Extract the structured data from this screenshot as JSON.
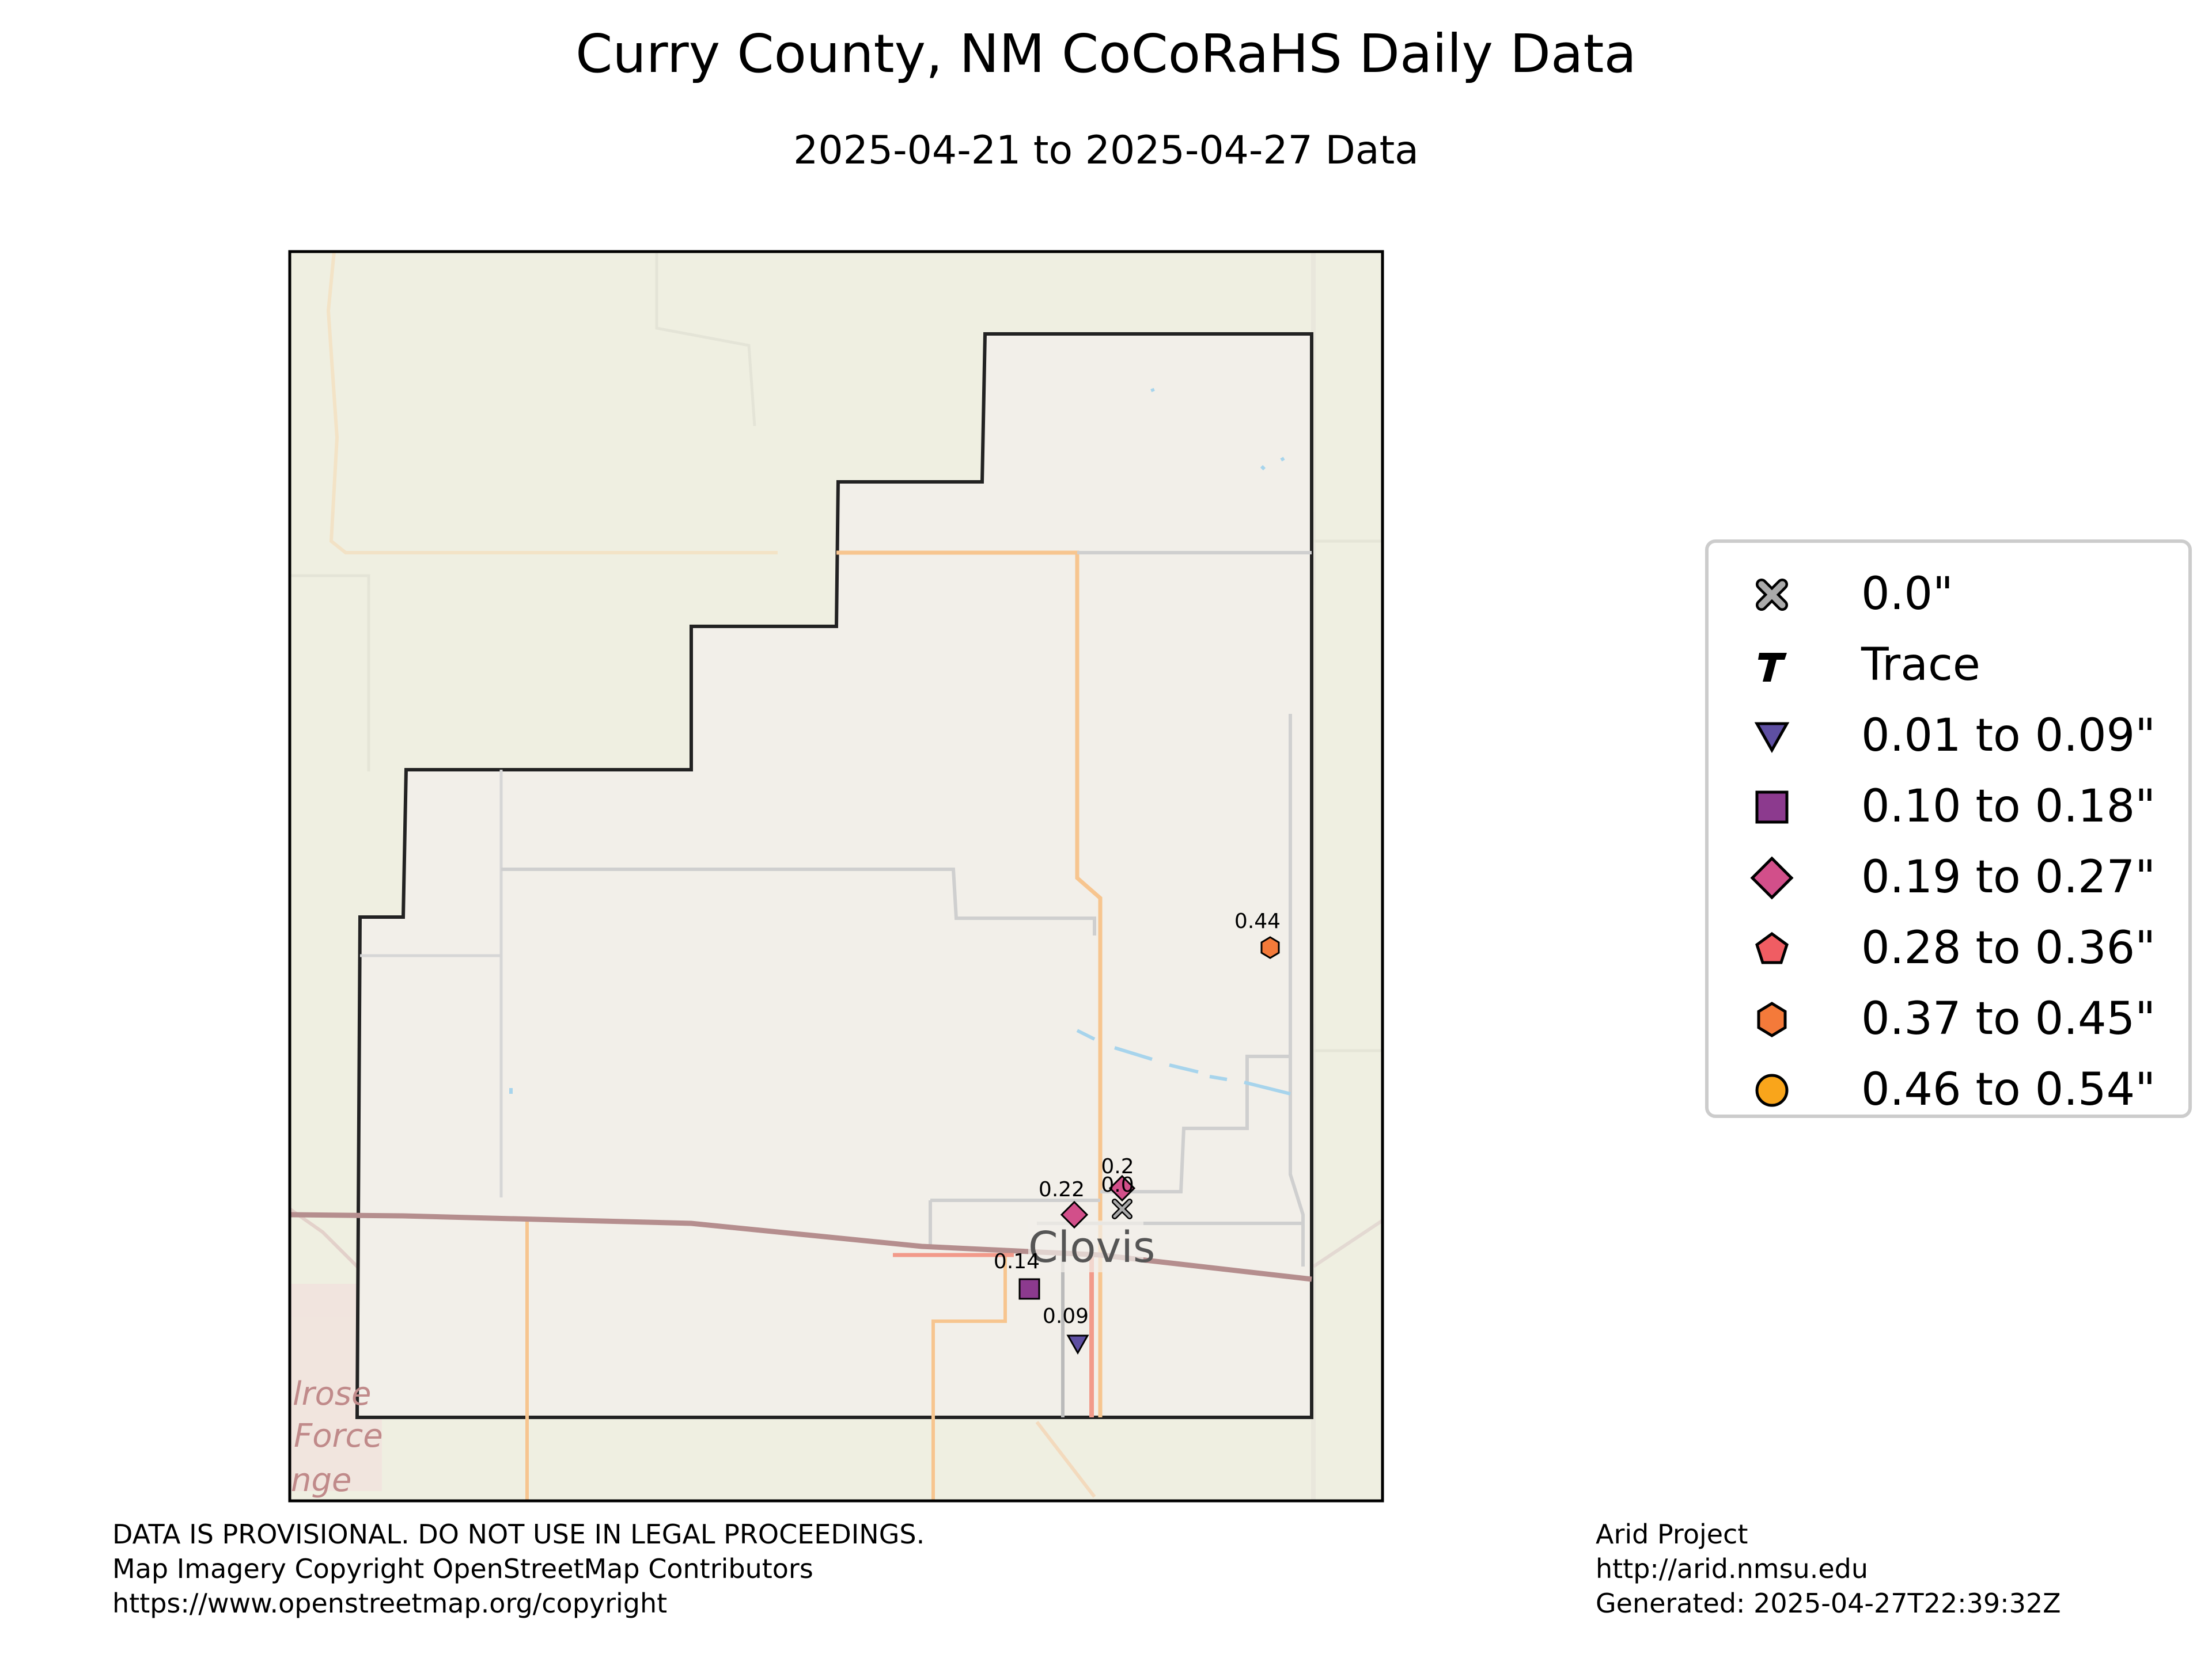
{
  "title": "Curry County, NM CoCoRaHS Daily Data",
  "subtitle": "2025-04-21 to 2025-04-27 Data",
  "colors": {
    "land": "#efefe1",
    "county_fill": "#f2efe9",
    "boundary": "#222222",
    "road_major": "#f7c58f",
    "road_minor": "#cccccc",
    "railway": "#a98c8c",
    "water": "#a7d4ec"
  },
  "map": {
    "place_label": "Clovis",
    "faint_labels": [
      "lrose",
      "Force",
      "nge"
    ]
  },
  "legend": {
    "items": [
      {
        "label": "0.0\"",
        "shape": "x-icon",
        "color": "#aaaaaa"
      },
      {
        "label": "Trace",
        "shape": "t-icon",
        "color": "#000000"
      },
      {
        "label": "0.01 to 0.09\"",
        "shape": "triangle-down-icon",
        "color": "#5e4fa2"
      },
      {
        "label": "0.10 to 0.18\"",
        "shape": "square-icon",
        "color": "#8c3a8e"
      },
      {
        "label": "0.19 to 0.27\"",
        "shape": "diamond-icon",
        "color": "#d24f8a"
      },
      {
        "label": "0.28 to 0.36\"",
        "shape": "pentagon-icon",
        "color": "#f05d63"
      },
      {
        "label": "0.37 to 0.45\"",
        "shape": "hexagon-icon",
        "color": "#f47a3a"
      },
      {
        "label": "0.46 to 0.54\"",
        "shape": "circle-icon",
        "color": "#f9a51b"
      }
    ]
  },
  "stations": [
    {
      "value": "0.44",
      "shape": "hexagon-icon"
    },
    {
      "value": "0.2",
      "shape": "diamond-icon"
    },
    {
      "value": "0.0",
      "shape": "x-icon"
    },
    {
      "value": "0.22",
      "shape": "diamond-icon"
    },
    {
      "value": "0.14",
      "shape": "square-icon"
    },
    {
      "value": "0.09",
      "shape": "triangle-down-icon"
    }
  ],
  "footer": {
    "left": [
      "DATA IS PROVISIONAL. DO NOT USE IN LEGAL PROCEEDINGS.",
      "Map Imagery Copyright OpenStreetMap Contributors",
      "https://www.openstreetmap.org/copyright"
    ],
    "right": [
      "Arid Project",
      "http://arid.nmsu.edu",
      "Generated: 2025-04-27T22:39:32Z"
    ]
  }
}
